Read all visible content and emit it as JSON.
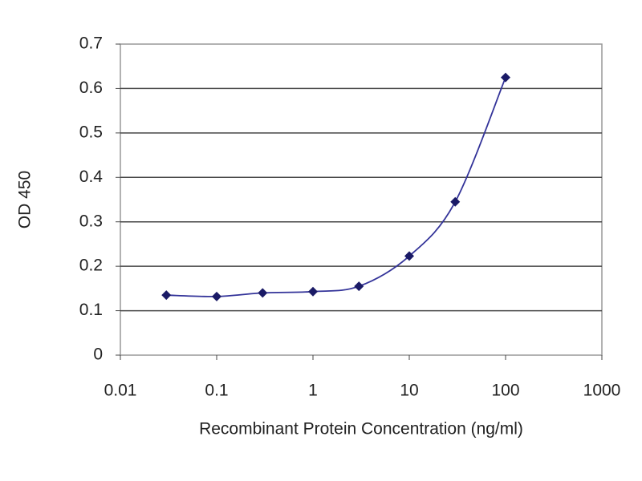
{
  "chart_data": {
    "type": "line",
    "x_label": "Recombinant Protein Concentration (ng/ml)",
    "y_label": "OD 450",
    "x": [
      0.03,
      0.1,
      0.3,
      1,
      3,
      10,
      30,
      100
    ],
    "values": [
      0.135,
      0.132,
      0.14,
      0.143,
      0.155,
      0.223,
      0.345,
      0.625
    ],
    "color": "#333399",
    "marker_color": "#1a1a66",
    "xlim": [
      0.01,
      1000
    ],
    "xticks": [
      0.01,
      0.1,
      1,
      10,
      100,
      1000
    ],
    "x_log": true,
    "ylim": [
      0,
      0.7
    ],
    "yticks": [
      0,
      0.1,
      0.2,
      0.3,
      0.4,
      0.5,
      0.6,
      0.7
    ],
    "grid": true
  }
}
